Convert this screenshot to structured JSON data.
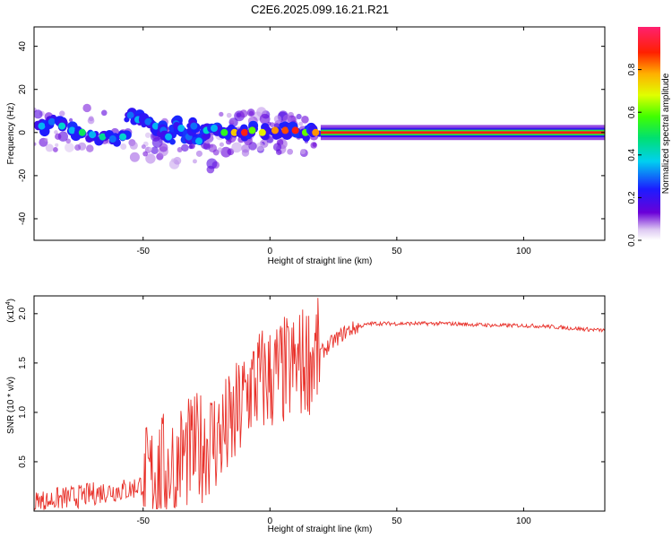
{
  "title": "C2E6.2025.099.16.21.R21",
  "chart_data": [
    {
      "type": "heatmap",
      "xlabel": "Height of straight line (km)",
      "ylabel": "Frequency (Hz)",
      "xlim": [
        -93,
        132
      ],
      "ylim": [
        -50,
        49
      ],
      "xticks": [
        -50,
        0,
        50,
        100
      ],
      "yticks": [
        -40,
        -20,
        0,
        20,
        40
      ],
      "grid": false,
      "colorbar": {
        "label": "Normalized spectral amplitude",
        "range": [
          0,
          1
        ],
        "ticks": [
          0.0,
          0.2,
          0.4,
          0.6,
          0.8
        ],
        "tick_labels": [
          "0.0",
          "0.2",
          "0.4",
          "0.6",
          "0.8"
        ]
      },
      "ridge": [
        {
          "x": -90,
          "y": 3,
          "a": 0.35
        },
        {
          "x": -86,
          "y": 5,
          "a": 0.3
        },
        {
          "x": -82,
          "y": 3,
          "a": 0.4
        },
        {
          "x": -78,
          "y": 1,
          "a": 0.35
        },
        {
          "x": -74,
          "y": 0,
          "a": 0.5
        },
        {
          "x": -70,
          "y": -1,
          "a": 0.35
        },
        {
          "x": -66,
          "y": -2,
          "a": 0.45
        },
        {
          "x": -62,
          "y": -3,
          "a": 0.3
        },
        {
          "x": -58,
          "y": -2,
          "a": 0.4
        },
        {
          "x": -55,
          "y": 8,
          "a": 0.3
        },
        {
          "x": -52,
          "y": 6,
          "a": 0.35
        },
        {
          "x": -48,
          "y": 5,
          "a": 0.3
        },
        {
          "x": -45,
          "y": 3,
          "a": 0.35
        },
        {
          "x": -42,
          "y": 1,
          "a": 0.3
        },
        {
          "x": -40,
          "y": -2,
          "a": 0.35
        },
        {
          "x": -37,
          "y": 4,
          "a": 0.3
        },
        {
          "x": -35,
          "y": 2,
          "a": 0.35
        },
        {
          "x": -32,
          "y": -2,
          "a": 0.3
        },
        {
          "x": -30,
          "y": 3,
          "a": 0.3
        },
        {
          "x": -28,
          "y": -4,
          "a": 0.35
        },
        {
          "x": -25,
          "y": 1,
          "a": 0.4
        },
        {
          "x": -22,
          "y": 2,
          "a": 0.35
        },
        {
          "x": -18,
          "y": 0,
          "a": 0.55
        },
        {
          "x": -14,
          "y": 0,
          "a": 0.75
        },
        {
          "x": -10,
          "y": 0,
          "a": 0.9
        },
        {
          "x": -7,
          "y": 1,
          "a": 0.6
        },
        {
          "x": -3,
          "y": 0,
          "a": 0.7
        },
        {
          "x": 2,
          "y": 1,
          "a": 0.8
        },
        {
          "x": 6,
          "y": 1,
          "a": 0.85
        },
        {
          "x": 10,
          "y": 1,
          "a": 0.9
        },
        {
          "x": 14,
          "y": 0,
          "a": 0.6
        },
        {
          "x": 18,
          "y": 0,
          "a": 0.8
        }
      ],
      "band_from_x": 20,
      "band_amplitude": 1.0
    },
    {
      "type": "line",
      "xlabel": "Height of straight line (km)",
      "ylabel": "SNR (10 * v/v)",
      "y_multiplier_label": "(x10",
      "y_multiplier_exp": "4",
      "y_multiplier_close": ")",
      "xlim": [
        -93,
        132
      ],
      "ylim": [
        0,
        2.18
      ],
      "xticks": [
        -50,
        0,
        50,
        100
      ],
      "yticks": [
        0.5,
        1.0,
        1.5,
        2.0
      ],
      "ytick_labels": [
        "0.5",
        "1.0",
        "1.5",
        "2.0"
      ],
      "grid": false,
      "series": [
        {
          "color": "#e8312a",
          "x": [
            -93,
            -85,
            -75,
            -65,
            -55,
            -50,
            -45,
            -40,
            -35,
            -30,
            -25,
            -20,
            -15,
            -12,
            -8,
            -5,
            0,
            5,
            10,
            15,
            20,
            25,
            30,
            35,
            40,
            50,
            60,
            70,
            80,
            90,
            100,
            110,
            120,
            132
          ],
          "y": [
            0.08,
            0.12,
            0.15,
            0.2,
            0.22,
            0.28,
            0.38,
            0.45,
            0.55,
            0.6,
            0.7,
            0.75,
            0.85,
            1.0,
            1.25,
            1.3,
            1.35,
            1.4,
            1.45,
            1.55,
            1.6,
            1.72,
            1.82,
            1.87,
            1.9,
            1.9,
            1.9,
            1.9,
            1.89,
            1.88,
            1.88,
            1.87,
            1.85,
            1.83
          ]
        }
      ]
    }
  ]
}
